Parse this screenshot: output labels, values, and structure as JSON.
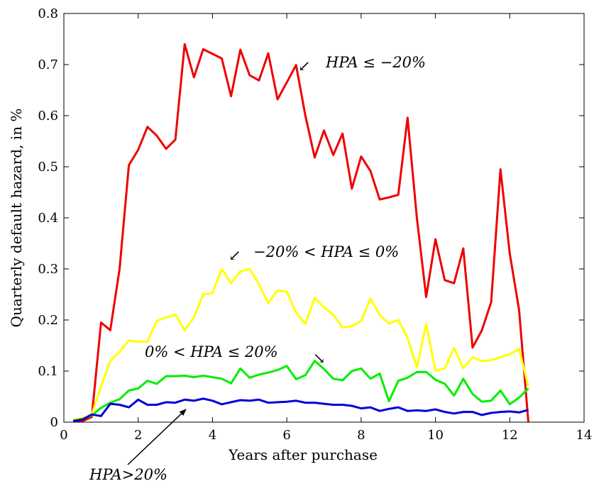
{
  "chart_data": {
    "type": "line",
    "title": "",
    "xlabel": "Years after purchase",
    "ylabel": "Quarterly default hazard, in %",
    "xlim": [
      0,
      14
    ],
    "ylim": [
      0,
      0.8
    ],
    "xticks": [
      0,
      2,
      4,
      6,
      8,
      10,
      12,
      14
    ],
    "xtick_labels": [
      "0",
      "2",
      "4",
      "6",
      "8",
      "10",
      "12",
      "14"
    ],
    "yticks": [
      0,
      0.1,
      0.2,
      0.3,
      0.4,
      0.5,
      0.6,
      0.7,
      0.8
    ],
    "ytick_labels": [
      "0",
      "0.1",
      "0.2",
      "0.3",
      "0.4",
      "0.5",
      "0.6",
      "0.7",
      "0.8"
    ],
    "grid": false,
    "legend": "none",
    "x": [
      0.25,
      0.5,
      0.75,
      1.0,
      1.25,
      1.5,
      1.75,
      2.0,
      2.25,
      2.5,
      2.75,
      3.0,
      3.25,
      3.5,
      3.75,
      4.0,
      4.25,
      4.5,
      4.75,
      5.0,
      5.25,
      5.5,
      5.75,
      6.0,
      6.25,
      6.5,
      6.75,
      7.0,
      7.25,
      7.5,
      7.75,
      8.0,
      8.25,
      8.5,
      8.75,
      9.0,
      9.25,
      9.5,
      9.75,
      10.0,
      10.25,
      10.5,
      10.75,
      11.0,
      11.25,
      11.5,
      11.75,
      12.0,
      12.25,
      12.5
    ],
    "series": [
      {
        "color": "#ee0000",
        "values": [
          0.0,
          0.002,
          0.01,
          0.195,
          0.18,
          0.3,
          0.503,
          0.533,
          0.578,
          0.561,
          0.535,
          0.553,
          0.74,
          0.675,
          0.73,
          0.721,
          0.712,
          0.638,
          0.729,
          0.679,
          0.669,
          0.722,
          0.632,
          0.665,
          0.699,
          0.6,
          0.518,
          0.571,
          0.523,
          0.565,
          0.457,
          0.52,
          0.492,
          0.436,
          0.44,
          0.445,
          0.596,
          0.4,
          0.245,
          0.358,
          0.278,
          0.272,
          0.34,
          0.146,
          0.18,
          0.235,
          0.495,
          0.33,
          0.22,
          0.0
        ]
      },
      {
        "color": "#ffff00",
        "values": [
          0.005,
          0.008,
          0.015,
          0.07,
          0.12,
          0.138,
          0.16,
          0.157,
          0.158,
          0.198,
          0.205,
          0.21,
          0.18,
          0.205,
          0.25,
          0.253,
          0.3,
          0.272,
          0.295,
          0.3,
          0.27,
          0.233,
          0.258,
          0.255,
          0.215,
          0.192,
          0.243,
          0.225,
          0.21,
          0.185,
          0.188,
          0.198,
          0.242,
          0.21,
          0.193,
          0.2,
          0.165,
          0.107,
          0.192,
          0.101,
          0.105,
          0.145,
          0.106,
          0.127,
          0.12,
          0.121,
          0.127,
          0.133,
          0.143,
          0.07
        ]
      },
      {
        "color": "#00ee00",
        "values": [
          0.003,
          0.006,
          0.013,
          0.028,
          0.038,
          0.045,
          0.062,
          0.066,
          0.081,
          0.075,
          0.09,
          0.09,
          0.091,
          0.088,
          0.091,
          0.088,
          0.085,
          0.076,
          0.105,
          0.087,
          0.093,
          0.097,
          0.102,
          0.11,
          0.084,
          0.092,
          0.12,
          0.104,
          0.085,
          0.082,
          0.1,
          0.105,
          0.085,
          0.095,
          0.041,
          0.081,
          0.087,
          0.098,
          0.098,
          0.083,
          0.075,
          0.052,
          0.085,
          0.055,
          0.04,
          0.042,
          0.062,
          0.035,
          0.048,
          0.066
        ]
      },
      {
        "color": "#0000dd",
        "values": [
          0.002,
          0.005,
          0.015,
          0.012,
          0.036,
          0.034,
          0.029,
          0.044,
          0.034,
          0.034,
          0.039,
          0.038,
          0.044,
          0.042,
          0.046,
          0.042,
          0.035,
          0.039,
          0.043,
          0.042,
          0.044,
          0.038,
          0.039,
          0.04,
          0.042,
          0.038,
          0.038,
          0.036,
          0.034,
          0.034,
          0.032,
          0.027,
          0.029,
          0.022,
          0.026,
          0.029,
          0.022,
          0.023,
          0.022,
          0.025,
          0.02,
          0.017,
          0.02,
          0.02,
          0.014,
          0.018,
          0.02,
          0.021,
          0.019,
          0.024
        ]
      }
    ],
    "annotations": {
      "red": {
        "arrow": "↙",
        "text": "HPA ≤ −20%"
      },
      "yellow": {
        "arrow": "↙",
        "text": "−20% < HPA ≤ 0%"
      },
      "green": {
        "text": "0% < HPA ≤ 20%",
        "arrow": "↘"
      },
      "blue": {
        "text": "HPA>20%"
      }
    }
  }
}
